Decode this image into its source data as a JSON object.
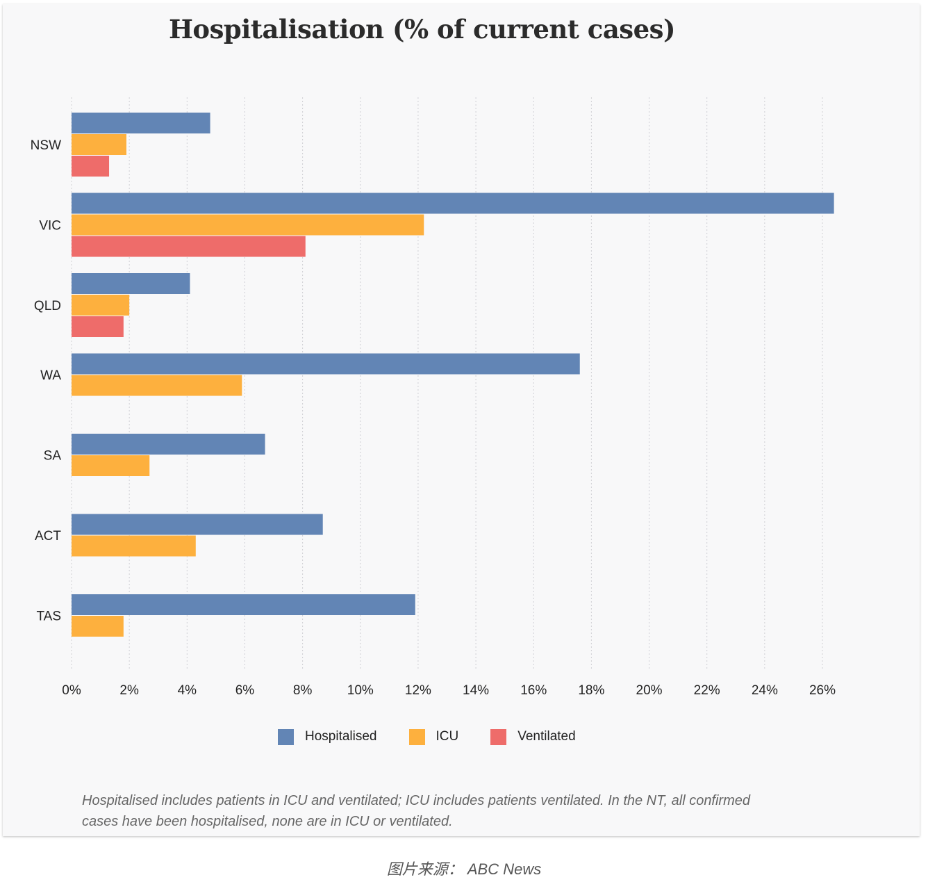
{
  "chart_data": {
    "type": "bar",
    "orientation": "horizontal",
    "title": "Hospitalisation (% of current cases)",
    "categories": [
      "NSW",
      "VIC",
      "QLD",
      "WA",
      "SA",
      "ACT",
      "TAS"
    ],
    "series": [
      {
        "name": "Hospitalised",
        "color": "#6285b5",
        "values": [
          4.8,
          26.4,
          4.1,
          17.6,
          6.7,
          8.7,
          11.9
        ]
      },
      {
        "name": "ICU",
        "color": "#fdb03e",
        "values": [
          1.9,
          12.2,
          2.0,
          5.9,
          2.7,
          4.3,
          1.8
        ]
      },
      {
        "name": "Ventilated",
        "color": "#ee6c6a",
        "values": [
          1.3,
          8.1,
          1.8,
          null,
          null,
          null,
          null
        ]
      }
    ],
    "xlim": [
      0,
      26
    ],
    "xticks": [
      0,
      2,
      4,
      6,
      8,
      10,
      12,
      14,
      16,
      18,
      20,
      22,
      24,
      26
    ],
    "xtick_labels": [
      "0%",
      "2%",
      "4%",
      "6%",
      "8%",
      "10%",
      "12%",
      "14%",
      "16%",
      "18%",
      "20%",
      "22%",
      "24%",
      "26%"
    ],
    "grid": "vertical dotted",
    "legend": "bottom-center"
  },
  "note": "Hospitalised includes patients in ICU and ventilated; ICU includes patients ventilated. In the NT, all confirmed cases have been hospitalised, none are in ICU or ventilated.",
  "source": "图片来源： ABC News"
}
